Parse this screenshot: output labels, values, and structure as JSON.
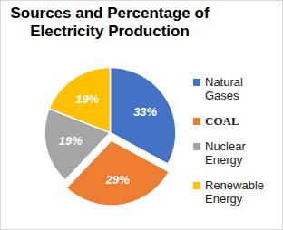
{
  "chart_data": {
    "type": "pie",
    "title": "Sources and Percentage of Electricity Production",
    "categories": [
      "Natural Gases",
      "COAL",
      "Nuclear Energy",
      "Renewable Energy"
    ],
    "values": [
      33,
      29,
      19,
      19
    ],
    "value_labels": [
      "33%",
      "29%",
      "19%",
      "19%"
    ],
    "colors": [
      "#4472c4",
      "#ed7d31",
      "#a5a5a5",
      "#ffc000"
    ],
    "data_labels": true,
    "legend": "right"
  }
}
